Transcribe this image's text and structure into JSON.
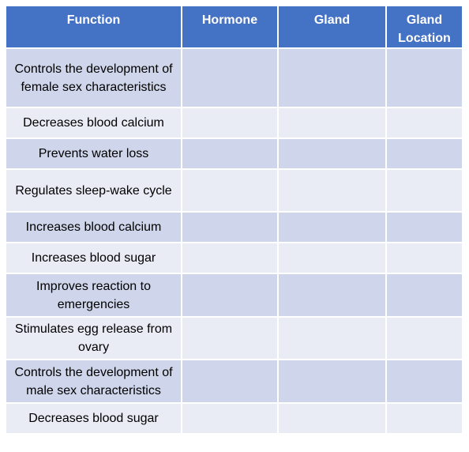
{
  "headers": [
    "Function",
    "Hormone",
    "Gland",
    "Gland Location"
  ],
  "rows": [
    {
      "function": "Controls the development of female sex characteristics",
      "hormone": "",
      "gland": "",
      "location": ""
    },
    {
      "function": "Decreases blood calcium",
      "hormone": "",
      "gland": "",
      "location": ""
    },
    {
      "function": "Prevents water loss",
      "hormone": "",
      "gland": "",
      "location": ""
    },
    {
      "function": "Regulates sleep-wake cycle",
      "hormone": "",
      "gland": "",
      "location": ""
    },
    {
      "function": "Increases blood calcium",
      "hormone": "",
      "gland": "",
      "location": ""
    },
    {
      "function": "Increases blood sugar",
      "hormone": "",
      "gland": "",
      "location": ""
    },
    {
      "function": "Improves reaction to emergencies",
      "hormone": "",
      "gland": "",
      "location": ""
    },
    {
      "function": "Stimulates egg release from ovary",
      "hormone": "",
      "gland": "",
      "location": ""
    },
    {
      "function": "Controls the development of male sex characteristics",
      "hormone": "",
      "gland": "",
      "location": ""
    },
    {
      "function": "Decreases blood sugar",
      "hormone": "",
      "gland": "",
      "location": ""
    }
  ],
  "colors": {
    "header_bg": "#4472c4",
    "row_dark": "#cfd5ea",
    "row_light": "#e9ebf5"
  }
}
